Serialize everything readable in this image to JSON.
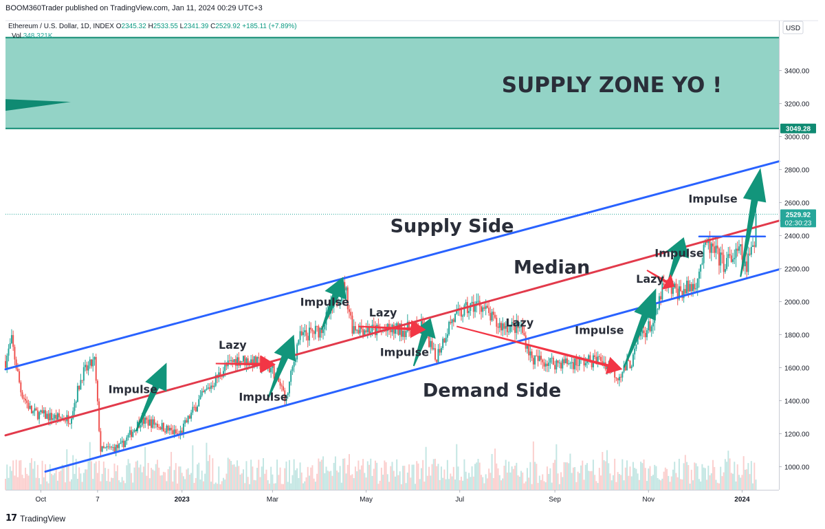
{
  "header": {
    "published_by": "BOOM360Trader published on TradingView.com, Jan 11, 2024 00:29 UTC+3"
  },
  "legend": {
    "symbol": "Ethereum / U.S. Dollar, 1D, INDEX",
    "open_label": "O",
    "open": "2345.32",
    "high_label": "H",
    "high": "2533.55",
    "low_label": "L",
    "low": "2341.39",
    "close_label": "C",
    "close": "2529.92",
    "change": "+185.11 (+7.89%)",
    "vol_label": "Vol",
    "vol": "348.321K"
  },
  "axis": {
    "currency": "USD"
  },
  "branding": {
    "name": "TradingView",
    "icon": "tradingview-logo-icon"
  },
  "colors": {
    "supply_zone": "#93d3c6",
    "supply_zone_edge": "#0f8a72",
    "channel": "#2962ff",
    "median": "#e23a4b",
    "up_candle": "#26a69a",
    "down_candle": "#ef5350",
    "impulse_arrow": "#12957b",
    "lazy_arrow": "#f23645"
  },
  "chart_data": {
    "type": "candlestick",
    "title": "",
    "y_axis": {
      "position": "right",
      "ylim": [
        860,
        3640
      ],
      "ticks": [
        1000,
        1200,
        1400,
        1600,
        1800,
        2000,
        2200,
        2400,
        2600,
        2800,
        3000,
        3200,
        3400
      ],
      "tick_labels": [
        "1000.00",
        "1200.00",
        "1400.00",
        "1600.00",
        "1800.00",
        "2000.00",
        "2200.00",
        "2400.00",
        "2600.00",
        "2800.00",
        "3000.00",
        "3200.00",
        "3400.00"
      ],
      "highlight_labels": [
        {
          "value": 3049.28,
          "label": "3049.28",
          "color": "#0f8a72"
        },
        {
          "value": 2529.92,
          "label": "2529.92",
          "sub": "02:30:23",
          "color": "#26a69a"
        }
      ]
    },
    "x_axis": {
      "range": [
        "2022-09-08",
        "2024-01-25"
      ],
      "ticks": [
        {
          "date": "2022-10-01",
          "label": "Oct",
          "bold": false
        },
        {
          "date": "2022-11-07",
          "label": "7",
          "bold": false
        },
        {
          "date": "2023-01-01",
          "label": "2023",
          "bold": true
        },
        {
          "date": "2023-03-01",
          "label": "Mar",
          "bold": false
        },
        {
          "date": "2023-05-01",
          "label": "May",
          "bold": false
        },
        {
          "date": "2023-07-01",
          "label": "Jul",
          "bold": false
        },
        {
          "date": "2023-09-01",
          "label": "Sep",
          "bold": false
        },
        {
          "date": "2023-11-01",
          "label": "Nov",
          "bold": false
        },
        {
          "date": "2024-01-01",
          "label": "2024",
          "bold": true
        }
      ]
    },
    "price_path": [
      [
        "2022-09-08",
        1640
      ],
      [
        "2022-09-12",
        1760
      ],
      [
        "2022-09-18",
        1460
      ],
      [
        "2022-09-25",
        1330
      ],
      [
        "2022-10-08",
        1300
      ],
      [
        "2022-10-20",
        1290
      ],
      [
        "2022-10-28",
        1560
      ],
      [
        "2022-11-05",
        1640
      ],
      [
        "2022-11-09",
        1100
      ],
      [
        "2022-11-22",
        1120
      ],
      [
        "2022-12-05",
        1280
      ],
      [
        "2022-12-15",
        1260
      ],
      [
        "2022-12-30",
        1190
      ],
      [
        "2023-01-12",
        1400
      ],
      [
        "2023-01-28",
        1590
      ],
      [
        "2023-02-05",
        1650
      ],
      [
        "2023-02-15",
        1640
      ],
      [
        "2023-03-01",
        1590
      ],
      [
        "2023-03-10",
        1410
      ],
      [
        "2023-03-18",
        1780
      ],
      [
        "2023-04-01",
        1830
      ],
      [
        "2023-04-17",
        2100
      ],
      [
        "2023-04-22",
        1850
      ],
      [
        "2023-05-10",
        1820
      ],
      [
        "2023-05-25",
        1830
      ],
      [
        "2023-06-08",
        1840
      ],
      [
        "2023-06-15",
        1650
      ],
      [
        "2023-06-25",
        1880
      ],
      [
        "2023-07-05",
        1950
      ],
      [
        "2023-07-14",
        1990
      ],
      [
        "2023-07-25",
        1860
      ],
      [
        "2023-08-10",
        1840
      ],
      [
        "2023-08-17",
        1650
      ],
      [
        "2023-09-01",
        1630
      ],
      [
        "2023-09-15",
        1630
      ],
      [
        "2023-10-01",
        1650
      ],
      [
        "2023-10-12",
        1550
      ],
      [
        "2023-10-22",
        1650
      ],
      [
        "2023-10-26",
        1790
      ],
      [
        "2023-11-05",
        1880
      ],
      [
        "2023-11-10",
        2080
      ],
      [
        "2023-11-22",
        2060
      ],
      [
        "2023-12-01",
        2100
      ],
      [
        "2023-12-09",
        2350
      ],
      [
        "2023-12-20",
        2230
      ],
      [
        "2023-12-31",
        2300
      ],
      [
        "2024-01-03",
        2200
      ],
      [
        "2024-01-09",
        2350
      ],
      [
        "2024-01-10",
        2529.92
      ]
    ],
    "volume_note": "volume histogram along the bottom of the price pane",
    "annotations": {
      "supply_zone": {
        "from": 3049.28,
        "to": 3600,
        "label": "SUPPLY ZONE YO !"
      },
      "channel_upper": {
        "label": "Supply Side",
        "points": [
          [
            "2022-09-08",
            1590
          ],
          [
            "2024-01-25",
            2850
          ]
        ]
      },
      "median": {
        "label": "Median",
        "points": [
          [
            "2022-09-08",
            1190
          ],
          [
            "2024-01-25",
            2490
          ]
        ]
      },
      "channel_lower": {
        "label": "Demand Side",
        "points": [
          [
            "2022-10-04",
            970
          ],
          [
            "2024-01-25",
            2195
          ]
        ]
      },
      "recent_level": {
        "points": [
          [
            "2023-12-04",
            2395
          ],
          [
            "2024-01-16",
            2395
          ]
        ]
      },
      "labels": [
        {
          "text": "Impulse",
          "date": "2022-11-30",
          "price": 1445
        },
        {
          "text": "Lazy",
          "date": "2023-02-03",
          "price": 1715
        },
        {
          "text": "Impulse",
          "date": "2023-02-23",
          "price": 1400
        },
        {
          "text": "Impulse",
          "date": "2023-04-04",
          "price": 1975
        },
        {
          "text": "Lazy",
          "date": "2023-05-12",
          "price": 1910
        },
        {
          "text": "Impulse",
          "date": "2023-05-26",
          "price": 1670
        },
        {
          "text": "Lazy",
          "date": "2023-08-09",
          "price": 1850
        },
        {
          "text": "Impulse",
          "date": "2023-09-30",
          "price": 1805
        },
        {
          "text": "Lazy",
          "date": "2023-11-02",
          "price": 2115
        },
        {
          "text": "Impulse",
          "date": "2023-11-21",
          "price": 2270
        },
        {
          "text": "Impulse",
          "date": "2023-12-13",
          "price": 2600
        },
        {
          "text": "Supply Side",
          "date": "2023-06-26",
          "price": 2420,
          "big": true
        },
        {
          "text": "Median",
          "date": "2023-08-30",
          "price": 2170,
          "big": true
        },
        {
          "text": "Demand Side",
          "date": "2023-07-22",
          "price": 1425,
          "big": true
        }
      ],
      "impulse_arrows": [
        {
          "from": [
            "2022-12-02",
            1215
          ],
          "to": [
            "2022-12-22",
            1630
          ]
        },
        {
          "from": [
            "2023-02-26",
            1410
          ],
          "to": [
            "2023-03-15",
            1800
          ]
        },
        {
          "from": [
            "2023-04-02",
            1830
          ],
          "to": [
            "2023-04-16",
            2150
          ]
        },
        {
          "from": [
            "2023-06-01",
            1610
          ],
          "to": [
            "2023-06-12",
            1900
          ]
        },
        {
          "from": [
            "2023-10-16",
            1600
          ],
          "to": [
            "2023-11-06",
            2080
          ]
        },
        {
          "from": [
            "2023-11-13",
            2090
          ],
          "to": [
            "2023-11-24",
            2390
          ]
        },
        {
          "from": [
            "2023-12-31",
            2150
          ],
          "to": [
            "2024-01-13",
            2810
          ]
        }
      ],
      "lazy_arrows": [
        {
          "from": [
            "2023-01-23",
            1625
          ],
          "to": [
            "2023-03-03",
            1620
          ]
        },
        {
          "from": [
            "2023-04-26",
            1850
          ],
          "to": [
            "2023-06-09",
            1830
          ]
        },
        {
          "from": [
            "2023-06-29",
            1850
          ],
          "to": [
            "2023-10-15",
            1590
          ]
        },
        {
          "from": [
            "2023-10-31",
            2190
          ],
          "to": [
            "2023-11-18",
            2090
          ]
        }
      ]
    }
  }
}
